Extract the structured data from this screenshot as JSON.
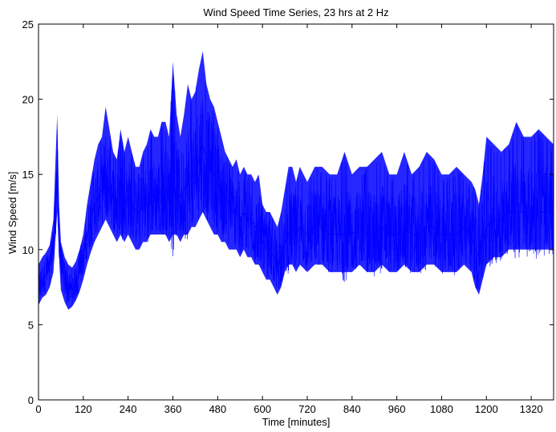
{
  "chart_data": {
    "type": "line",
    "title": "Wind Speed Time Series, 23 hrs at 2 Hz",
    "xlabel": "Time [minutes]",
    "ylabel": "Wind Speed [m/s]",
    "xlim": [
      0,
      1380
    ],
    "ylim": [
      0,
      25
    ],
    "xticks": [
      0,
      120,
      240,
      360,
      480,
      600,
      720,
      840,
      960,
      1080,
      1200,
      1320
    ],
    "yticks": [
      0,
      5,
      10,
      15,
      20,
      25
    ],
    "grid": false,
    "line_color": "#0000ff",
    "series": [
      {
        "x": [
          0,
          10,
          20,
          30,
          40,
          45,
          50,
          55,
          60,
          70,
          80,
          90,
          100,
          110,
          120,
          130,
          140,
          150,
          160,
          170,
          180,
          190,
          200,
          210,
          220,
          230,
          240,
          250,
          260,
          270,
          280,
          290,
          300,
          310,
          320,
          330,
          340,
          350,
          360,
          370,
          380,
          390,
          400,
          410,
          420,
          430,
          440,
          450,
          460,
          470,
          480,
          490,
          500,
          510,
          520,
          530,
          540,
          550,
          560,
          570,
          580,
          590,
          600,
          610,
          620,
          630,
          640,
          650,
          660,
          670,
          680,
          690,
          700,
          720,
          740,
          760,
          780,
          800,
          820,
          840,
          860,
          880,
          900,
          920,
          940,
          960,
          980,
          1000,
          1020,
          1040,
          1060,
          1080,
          1100,
          1120,
          1140,
          1160,
          1170,
          1180,
          1190,
          1200,
          1220,
          1240,
          1260,
          1280,
          1300,
          1320,
          1340,
          1360,
          1380
        ],
        "y": [
          7.5,
          8.0,
          8.3,
          8.8,
          10.5,
          13.0,
          15.5,
          11.0,
          9.0,
          8.0,
          7.5,
          7.3,
          7.8,
          8.5,
          9.5,
          11.0,
          12.0,
          13.0,
          13.5,
          14.0,
          15.0,
          14.5,
          13.5,
          13.0,
          13.5,
          13.0,
          13.5,
          13.0,
          12.5,
          12.5,
          13.0,
          13.0,
          13.5,
          13.5,
          13.5,
          14.0,
          14.0,
          13.5,
          14.0,
          14.0,
          13.5,
          14.0,
          14.5,
          15.0,
          15.0,
          16.0,
          17.0,
          16.0,
          15.5,
          15.0,
          14.5,
          14.0,
          13.5,
          13.0,
          12.5,
          12.5,
          12.0,
          12.5,
          12.0,
          12.0,
          11.5,
          11.5,
          10.5,
          10.0,
          10.0,
          9.5,
          9.0,
          9.5,
          10.5,
          11.0,
          11.5,
          11.0,
          11.5,
          11.0,
          11.5,
          11.5,
          11.0,
          11.0,
          11.0,
          11.0,
          11.5,
          11.0,
          11.0,
          11.5,
          11.0,
          11.0,
          11.5,
          11.0,
          11.0,
          11.5,
          11.5,
          11.0,
          11.0,
          11.0,
          11.5,
          11.0,
          10.0,
          9.5,
          10.5,
          11.5,
          12.0,
          12.0,
          12.5,
          12.5,
          12.5,
          12.5,
          12.5,
          12.5,
          12.5
        ],
        "min_envelope": [
          6.3,
          6.8,
          7.0,
          7.5,
          8.5,
          10.5,
          12.5,
          9.5,
          7.3,
          6.5,
          6.0,
          6.2,
          6.6,
          7.2,
          8.0,
          9.0,
          9.8,
          10.5,
          11.0,
          11.5,
          12.0,
          11.5,
          11.0,
          10.5,
          11.0,
          10.5,
          11.0,
          10.5,
          10.0,
          10.0,
          10.5,
          10.5,
          11.0,
          11.0,
          11.0,
          11.0,
          11.0,
          10.5,
          11.0,
          11.0,
          10.5,
          11.0,
          11.0,
          11.5,
          11.5,
          12.0,
          12.5,
          12.0,
          11.5,
          11.0,
          11.0,
          10.5,
          10.5,
          10.0,
          10.0,
          10.0,
          9.5,
          10.0,
          9.5,
          9.5,
          9.0,
          9.0,
          8.5,
          8.0,
          8.0,
          7.5,
          7.0,
          7.5,
          8.5,
          9.0,
          9.0,
          8.5,
          9.0,
          8.5,
          9.0,
          9.0,
          8.5,
          8.5,
          8.5,
          8.5,
          9.0,
          8.5,
          8.5,
          9.0,
          8.5,
          8.5,
          9.0,
          8.5,
          8.5,
          9.0,
          9.0,
          8.5,
          8.5,
          8.5,
          9.0,
          8.5,
          7.5,
          7.0,
          8.0,
          9.0,
          9.5,
          9.5,
          10.0,
          10.0,
          10.0,
          10.0,
          10.0,
          10.0,
          10.0
        ],
        "max_envelope": [
          9.0,
          9.5,
          9.8,
          10.3,
          12.0,
          15.5,
          19.0,
          13.0,
          10.5,
          9.5,
          9.0,
          8.8,
          9.2,
          10.0,
          11.0,
          13.0,
          14.5,
          16.0,
          17.0,
          17.5,
          19.5,
          18.0,
          16.5,
          16.0,
          18.0,
          16.5,
          17.5,
          16.5,
          15.5,
          15.5,
          16.5,
          17.0,
          18.0,
          17.5,
          17.5,
          18.5,
          18.5,
          17.5,
          22.5,
          19.0,
          17.5,
          19.0,
          21.0,
          20.0,
          20.5,
          22.0,
          23.2,
          21.0,
          20.0,
          19.5,
          18.5,
          17.5,
          16.5,
          16.0,
          15.5,
          16.0,
          15.0,
          15.5,
          15.0,
          15.0,
          14.5,
          15.0,
          13.0,
          12.5,
          12.5,
          12.0,
          11.5,
          12.5,
          14.0,
          15.5,
          15.5,
          14.5,
          15.5,
          14.5,
          15.5,
          15.5,
          15.0,
          15.0,
          16.5,
          15.0,
          15.5,
          15.5,
          16.0,
          16.5,
          15.0,
          15.0,
          16.5,
          15.0,
          15.5,
          16.5,
          16.0,
          15.0,
          15.0,
          15.5,
          15.0,
          14.5,
          14.0,
          13.0,
          15.0,
          17.5,
          17.0,
          16.5,
          17.0,
          18.5,
          17.5,
          17.5,
          18.0,
          17.5,
          17.0
        ]
      }
    ]
  }
}
